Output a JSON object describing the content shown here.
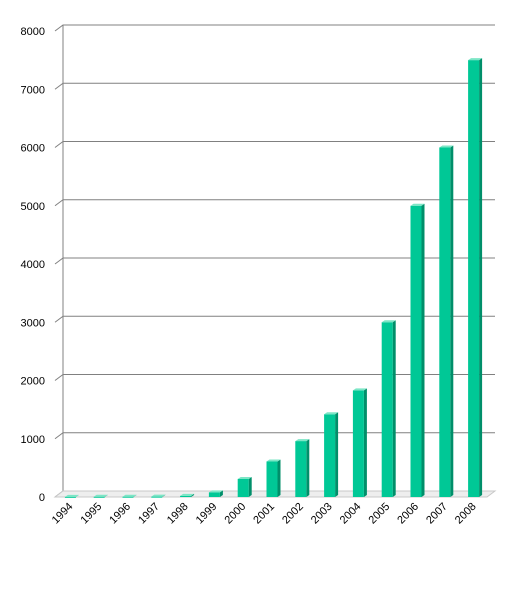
{
  "chart_data": {
    "type": "bar",
    "title": "",
    "xlabel": "",
    "ylabel": "",
    "categories": [
      "1994",
      "1995",
      "1996",
      "1997",
      "1998",
      "1999",
      "2000",
      "2001",
      "2002",
      "2003",
      "2004",
      "2005",
      "2006",
      "2007",
      "2008"
    ],
    "values": [
      3,
      4,
      5,
      6,
      20,
      80,
      310,
      610,
      960,
      1420,
      1830,
      3000,
      5000,
      6000,
      7500
    ],
    "ylim": [
      0,
      8000
    ],
    "yticks": [
      "0",
      "1000",
      "2000",
      "3000",
      "4000",
      "5000",
      "6000",
      "7000",
      "8000"
    ],
    "grid": true,
    "legend": "none",
    "colors": {
      "bar_front": "#00c896",
      "bar_side": "#008f6a",
      "bar_top": "#7de6c6",
      "gridline": "#808080",
      "floor": "#c8c8c8"
    }
  }
}
